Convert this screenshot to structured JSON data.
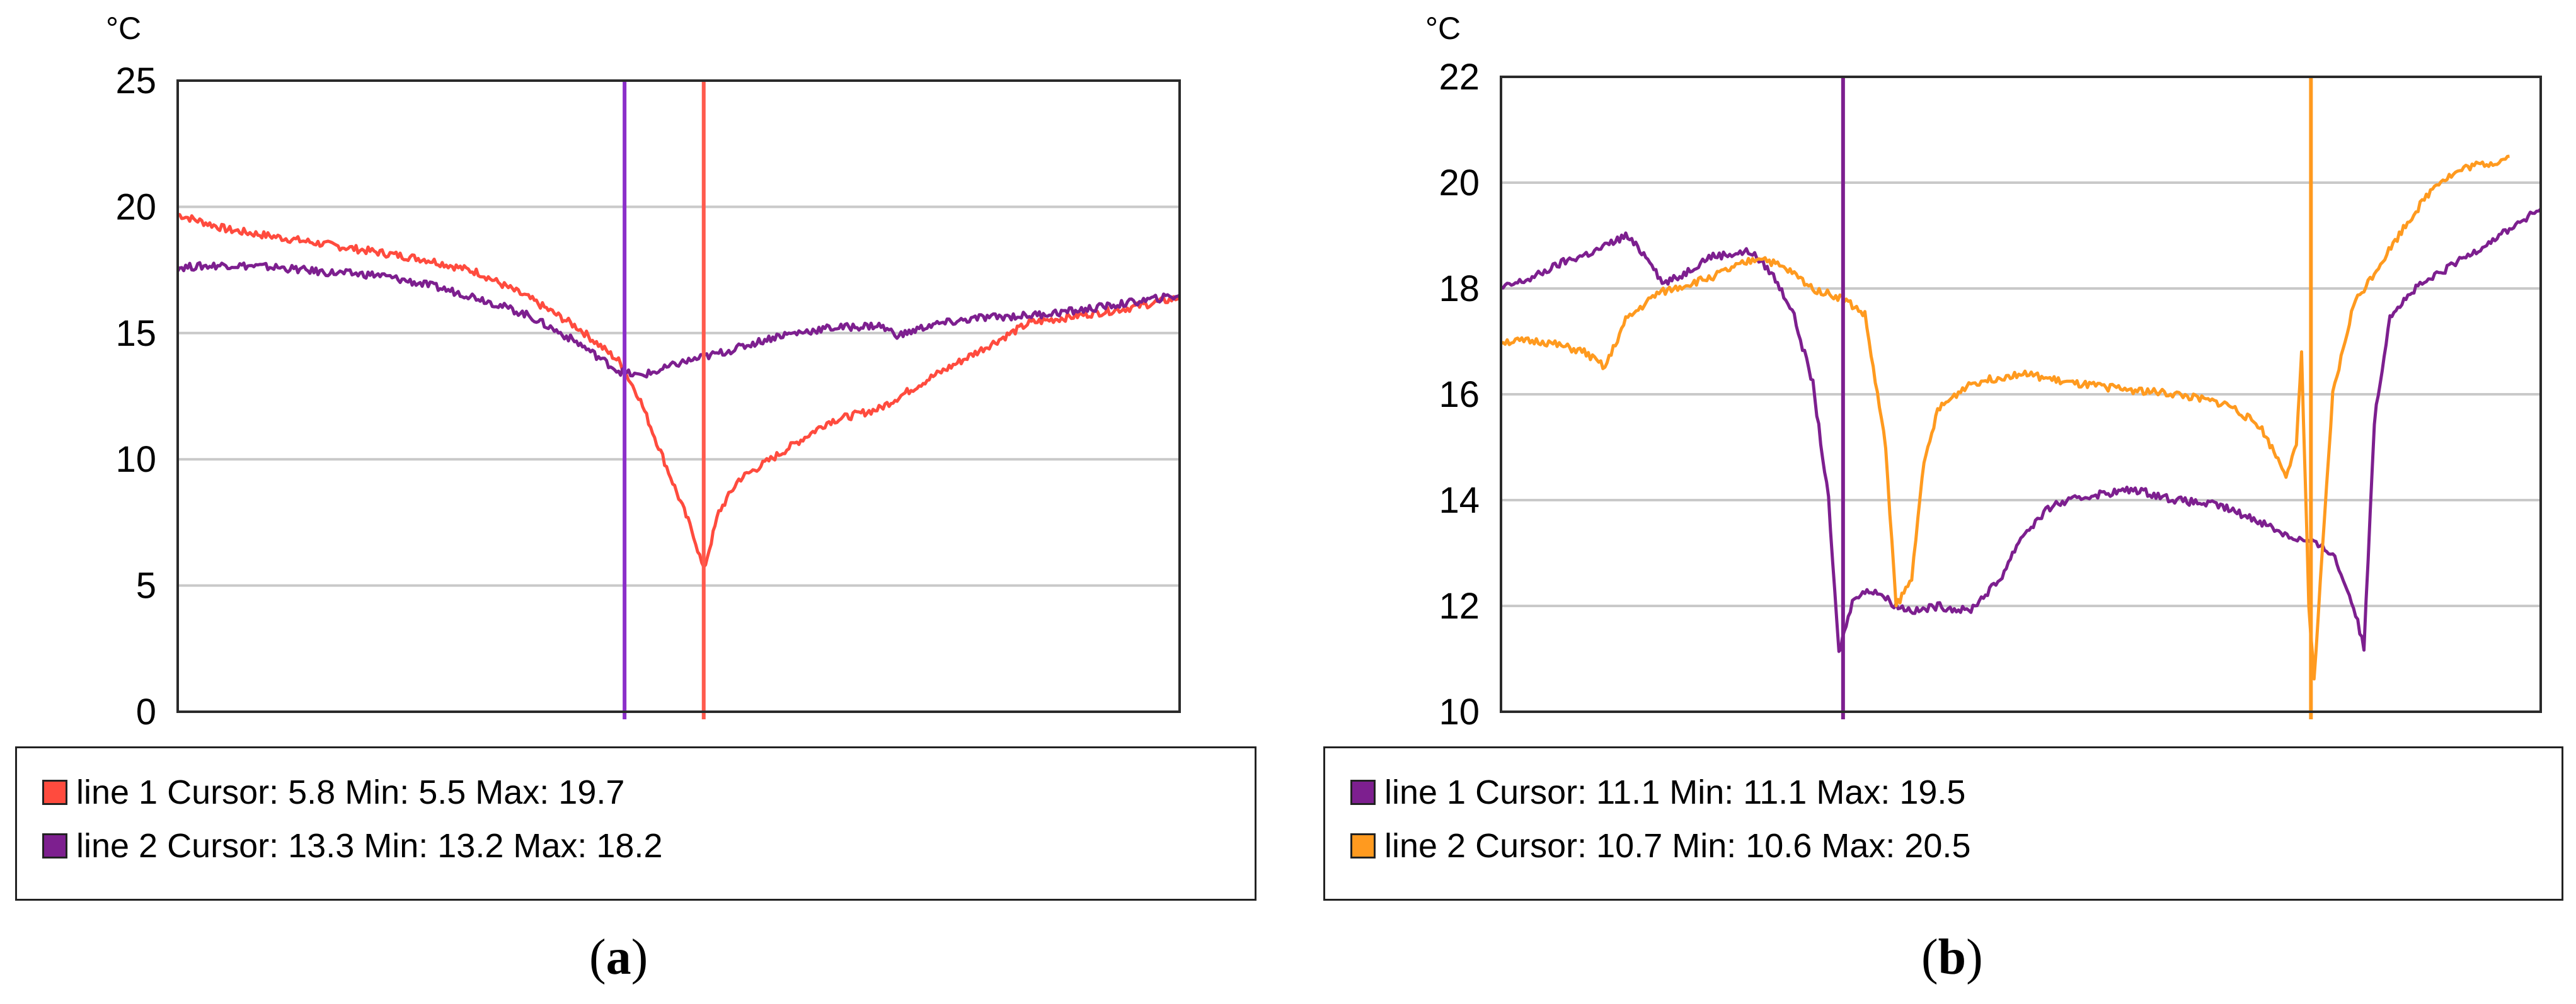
{
  "chart_data": [
    {
      "type": "line",
      "panel_label": "a",
      "ylabel": "°C",
      "ylim": [
        0,
        25
      ],
      "yticks": [
        0,
        5,
        10,
        15,
        20,
        25
      ],
      "grid": true,
      "xlim": [
        0,
        100
      ],
      "cursor_lines": [
        {
          "x": 44.6,
          "color": "#8b2fc9"
        },
        {
          "x": 52.5,
          "color": "#ff5a4d"
        }
      ],
      "series": [
        {
          "name": "line 1",
          "color": "#ff4b3e",
          "cursor": "5.8",
          "min": "5.5",
          "max": "19.7",
          "x": [
            0,
            5,
            10,
            15,
            20,
            25,
            30,
            35,
            40,
            44,
            46,
            48,
            50,
            51.5,
            52.5,
            54,
            56,
            60,
            65,
            70,
            75,
            80,
            85,
            90,
            95,
            100
          ],
          "y": [
            19.7,
            19.1,
            18.8,
            18.5,
            18.2,
            17.9,
            17.4,
            16.4,
            15.2,
            13.9,
            12.5,
            10.5,
            8.5,
            7.0,
            5.6,
            7.9,
            9.2,
            10.2,
            11.5,
            12.0,
            13.2,
            14.3,
            15.4,
            15.7,
            16.0,
            16.4
          ]
        },
        {
          "name": "line 2",
          "color": "#7d1f8f",
          "cursor": "13.3",
          "min": "13.2",
          "max": "18.2",
          "x": [
            0,
            5,
            10,
            15,
            20,
            25,
            30,
            35,
            40,
            44,
            46,
            48,
            50,
            55,
            60,
            65,
            70,
            72,
            75,
            80,
            85,
            90,
            95,
            100
          ],
          "y": [
            17.6,
            17.7,
            17.6,
            17.4,
            17.3,
            16.9,
            16.4,
            15.7,
            14.6,
            13.5,
            13.3,
            13.5,
            13.8,
            14.3,
            14.9,
            15.2,
            15.3,
            14.9,
            15.3,
            15.6,
            15.7,
            15.9,
            16.2,
            16.5
          ]
        }
      ]
    },
    {
      "type": "line",
      "panel_label": "b",
      "ylabel": "°C",
      "ylim": [
        10,
        22
      ],
      "yticks": [
        10,
        12,
        14,
        16,
        18,
        20,
        22
      ],
      "grid": true,
      "xlim": [
        0,
        100
      ],
      "cursor_lines": [
        {
          "x": 32.9,
          "color": "#7d1f8f"
        },
        {
          "x": 77.9,
          "color": "#ff9a1f"
        }
      ],
      "series": [
        {
          "name": "line 1",
          "color": "#7d1f8f",
          "cursor": "11.1",
          "min": "11.1",
          "max": "19.5",
          "x": [
            0,
            3,
            6,
            9,
            12,
            14.5,
            15.5,
            17,
            20,
            24,
            26,
            28,
            30,
            31.5,
            32.5,
            33,
            34,
            36,
            38,
            40,
            42,
            45,
            48,
            50,
            53,
            57,
            61,
            65,
            69,
            73,
            76,
            78,
            80,
            82,
            83,
            84,
            85.5,
            88,
            92,
            96,
            100
          ],
          "y": [
            18.0,
            18.2,
            18.5,
            18.7,
            19.0,
            18.5,
            18.1,
            18.2,
            18.6,
            18.7,
            18.3,
            17.6,
            16.2,
            14.0,
            11.1,
            11.5,
            12.2,
            12.3,
            12.0,
            11.9,
            12.0,
            11.9,
            12.5,
            13.3,
            13.9,
            14.1,
            14.2,
            14.0,
            13.9,
            13.6,
            13.3,
            13.2,
            13.0,
            12.0,
            11.2,
            15.5,
            17.5,
            18.0,
            18.5,
            19.0,
            19.5
          ]
        },
        {
          "name": "line 2",
          "color": "#ff9a1f",
          "cursor": "10.7",
          "min": "10.6",
          "max": "20.5",
          "x": [
            0,
            4,
            8,
            10,
            12,
            15,
            20,
            25,
            28,
            30,
            33,
            35,
            37,
            38,
            39.5,
            40.5,
            42,
            45,
            50,
            55,
            60,
            65,
            70,
            73,
            75.5,
            76.5,
            77,
            77.7,
            78.2,
            79,
            80,
            82,
            84,
            87,
            90,
            93,
            96,
            97
          ],
          "y": [
            17.0,
            17.0,
            16.8,
            16.5,
            17.4,
            17.9,
            18.2,
            18.6,
            18.3,
            18.0,
            17.8,
            17.5,
            15.0,
            12.0,
            12.5,
            14.5,
            15.7,
            16.2,
            16.4,
            16.2,
            16.1,
            16.0,
            15.8,
            15.4,
            14.5,
            15.0,
            16.8,
            12.0,
            10.6,
            13.0,
            16.0,
            17.7,
            18.3,
            19.2,
            20.0,
            20.3,
            20.4,
            20.5
          ]
        }
      ]
    }
  ],
  "legends": [
    {
      "rows": [
        {
          "text": "line 1 Cursor: 5.8  Min: 5.5  Max: 19.7",
          "color": "#ff4b3e"
        },
        {
          "text": "line 2 Cursor: 13.3  Min: 13.2  Max: 18.2",
          "color": "#7d1f8f"
        }
      ]
    },
    {
      "rows": [
        {
          "text": "line 1 Cursor: 11.1  Min: 11.1  Max: 19.5",
          "color": "#7d1f8f"
        },
        {
          "text": "line 2 Cursor: 10.7  Min: 10.6  Max: 20.5",
          "color": "#ff9a1f"
        }
      ]
    }
  ],
  "captions": {
    "a": {
      "open": "(",
      "letter": "a",
      "close": ")"
    },
    "b": {
      "open": "(",
      "letter": "b",
      "close": ")"
    }
  },
  "colors": {
    "grid": "#c9c9c9",
    "frame": "#2a2a2a"
  }
}
